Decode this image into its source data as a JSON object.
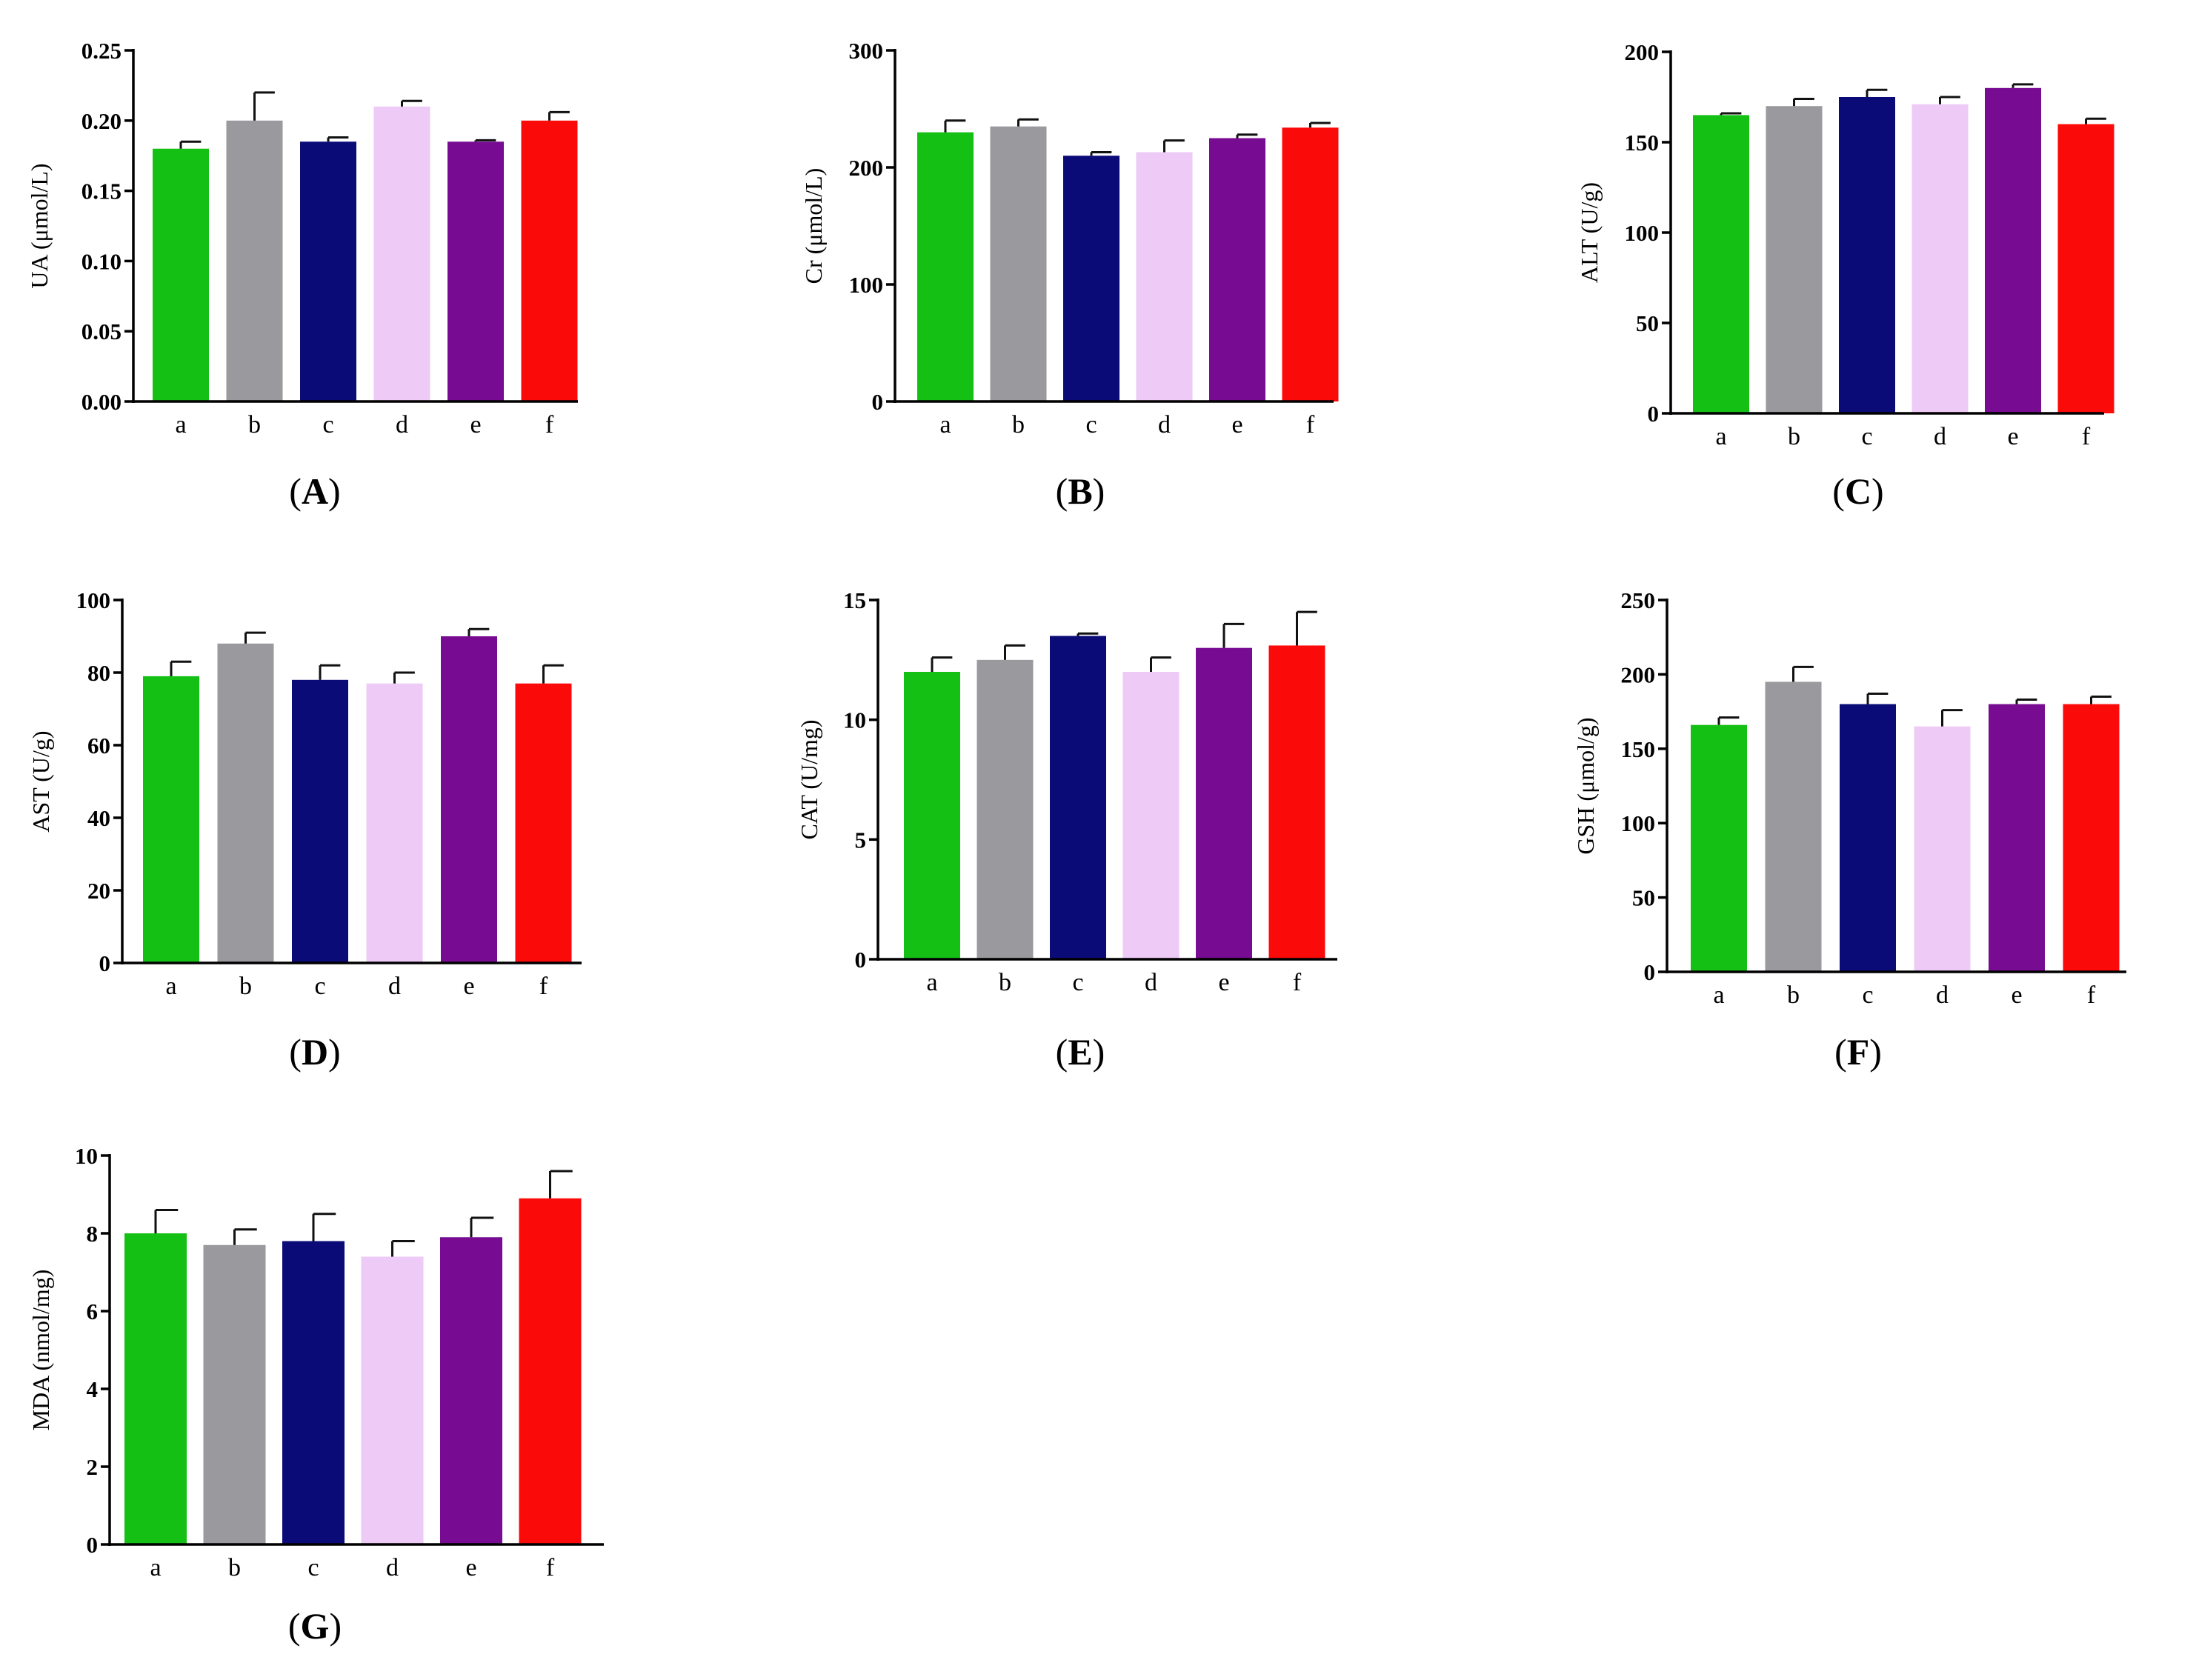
{
  "figure": {
    "panels": [
      "A",
      "B",
      "C",
      "D",
      "E",
      "F",
      "G"
    ]
  },
  "colors": {
    "a": "#14c014",
    "b": "#9a9a9e",
    "c": "#0b0b78",
    "d": "#eecaf6",
    "e": "#770b92",
    "f": "#fb0a0a",
    "axis": "#000000"
  },
  "chart_data": [
    {
      "type": "bar",
      "panel": "A",
      "ylabel": "UA (μmol/L)",
      "categories": [
        "a",
        "b",
        "c",
        "d",
        "e",
        "f"
      ],
      "values": [
        0.18,
        0.2,
        0.185,
        0.21,
        0.185,
        0.2
      ],
      "errors": [
        0.005,
        0.02,
        0.003,
        0.004,
        0.001,
        0.006
      ],
      "ylim": [
        0,
        0.25
      ],
      "yticks": [
        0,
        0.05,
        0.1,
        0.15,
        0.2,
        0.25
      ],
      "ytick_labels": [
        "0.00",
        "0.05",
        "0.10",
        "0.15",
        "0.20",
        "0.25"
      ]
    },
    {
      "type": "bar",
      "panel": "B",
      "ylabel": "Cr (μmol/L)",
      "categories": [
        "a",
        "b",
        "c",
        "d",
        "e",
        "f"
      ],
      "values": [
        230,
        235,
        210,
        213,
        225,
        234
      ],
      "errors": [
        10,
        6,
        3,
        10,
        3,
        4
      ],
      "ylim": [
        0,
        300
      ],
      "yticks": [
        0,
        100,
        200,
        300
      ],
      "ytick_labels": [
        "0",
        "100",
        "200",
        "300"
      ]
    },
    {
      "type": "bar",
      "panel": "C",
      "ylabel": "ALT (U/g)",
      "categories": [
        "a",
        "b",
        "c",
        "d",
        "e",
        "f"
      ],
      "values": [
        165,
        170,
        175,
        171,
        180,
        160
      ],
      "errors": [
        1,
        4,
        4,
        4,
        2,
        3
      ],
      "ylim": [
        0,
        200
      ],
      "yticks": [
        0,
        50,
        100,
        150,
        200
      ],
      "ytick_labels": [
        "0",
        "50",
        "100",
        "150",
        "200"
      ]
    },
    {
      "type": "bar",
      "panel": "D",
      "ylabel": "AST (U/g)",
      "categories": [
        "a",
        "b",
        "c",
        "d",
        "e",
        "f"
      ],
      "values": [
        79,
        88,
        78,
        77,
        90,
        77
      ],
      "errors": [
        4,
        3,
        4,
        3,
        2,
        5
      ],
      "ylim": [
        0,
        100
      ],
      "yticks": [
        0,
        20,
        40,
        60,
        80,
        100
      ],
      "ytick_labels": [
        "0",
        "20",
        "40",
        "60",
        "80",
        "100"
      ]
    },
    {
      "type": "bar",
      "panel": "E",
      "ylabel": "CAT (U/mg)",
      "categories": [
        "a",
        "b",
        "c",
        "d",
        "e",
        "f"
      ],
      "values": [
        12.0,
        12.5,
        13.5,
        12.0,
        13.0,
        13.1
      ],
      "errors": [
        0.6,
        0.6,
        0.1,
        0.6,
        1.0,
        1.4
      ],
      "ylim": [
        0,
        15
      ],
      "yticks": [
        0,
        5,
        10,
        15
      ],
      "ytick_labels": [
        "0",
        "5",
        "10",
        "15"
      ]
    },
    {
      "type": "bar",
      "panel": "F",
      "ylabel": "GSH (μmol/g)",
      "categories": [
        "a",
        "b",
        "c",
        "d",
        "e",
        "f"
      ],
      "values": [
        166,
        195,
        180,
        165,
        180,
        180
      ],
      "errors": [
        5,
        10,
        7,
        11,
        3,
        5
      ],
      "ylim": [
        0,
        250
      ],
      "yticks": [
        0,
        50,
        100,
        150,
        200,
        250
      ],
      "ytick_labels": [
        "0",
        "50",
        "100",
        "150",
        "200",
        "250"
      ]
    },
    {
      "type": "bar",
      "panel": "G",
      "ylabel": "MDA (nmol/mg)",
      "categories": [
        "a",
        "b",
        "c",
        "d",
        "e",
        "f"
      ],
      "values": [
        8.0,
        7.7,
        7.8,
        7.4,
        7.9,
        8.9
      ],
      "errors": [
        0.6,
        0.4,
        0.7,
        0.4,
        0.5,
        0.7
      ],
      "ylim": [
        0,
        10
      ],
      "yticks": [
        0,
        2,
        4,
        6,
        8,
        10
      ],
      "ytick_labels": [
        "0",
        "2",
        "4",
        "6",
        "8",
        "10"
      ]
    }
  ]
}
